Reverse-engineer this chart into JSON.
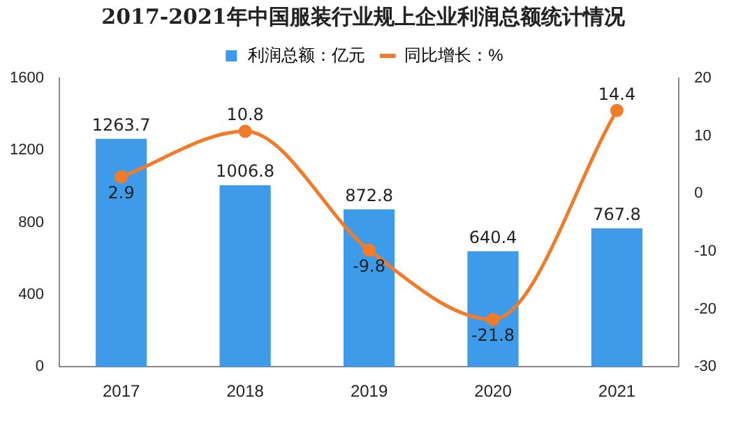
{
  "chart_data": {
    "type": "bar",
    "title": "2017-2021年中国服装行业规上企业利润总额统计情况",
    "categories": [
      "2017",
      "2018",
      "2019",
      "2020",
      "2021"
    ],
    "series": [
      {
        "name": "利润总额：亿元",
        "color": "#3d9be9",
        "values": [
          1263.7,
          1006.8,
          872.8,
          640.4,
          767.8
        ]
      },
      {
        "name": "同比增长：%",
        "type": "line",
        "axis": "y2",
        "color": "#f07c2a",
        "values": [
          2.9,
          10.8,
          -9.8,
          -21.8,
          14.4
        ]
      }
    ],
    "ylim": [
      0,
      1600
    ],
    "yticks": [
      0,
      400,
      800,
      1200,
      1600
    ],
    "y2lim": [
      -30,
      20
    ],
    "y2ticks": [
      -30,
      -20,
      -10,
      0,
      10,
      20
    ],
    "grid": false,
    "legend": "top",
    "marker": "circle",
    "line_style": "solid",
    "data_labels": true
  }
}
